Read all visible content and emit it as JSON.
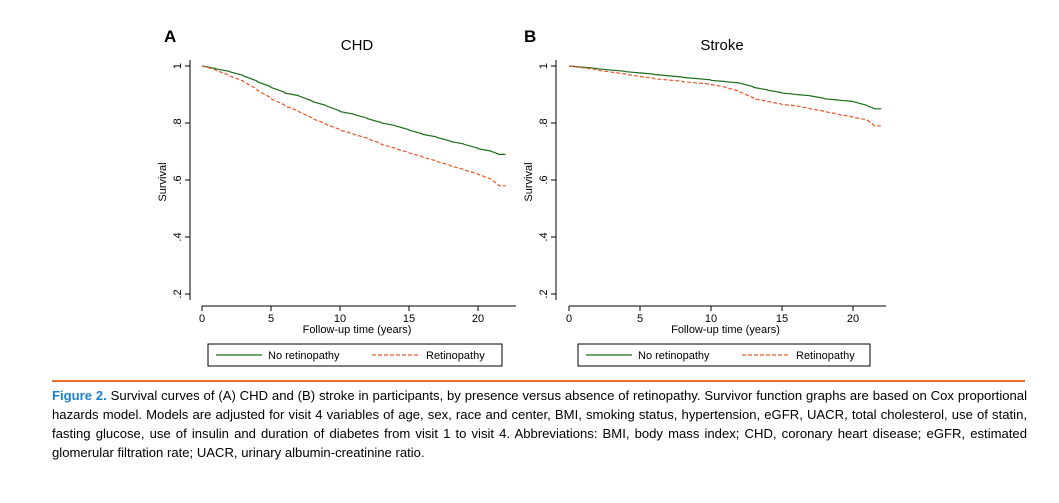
{
  "chart_data": [
    {
      "type": "line",
      "panel_label": "A",
      "title": "CHD",
      "xlabel": "Follow-up time (years)",
      "ylabel": "Survival",
      "xlim": [
        0,
        22
      ],
      "ylim": [
        0.2,
        1.0
      ],
      "x_ticks": [
        "0",
        "5",
        "10",
        "15",
        "20"
      ],
      "y_ticks": [
        ".2",
        ".4",
        ".6",
        ".8",
        "1"
      ],
      "series": [
        {
          "name": "No retinopathy",
          "color": "#1a6e1a",
          "style": "solid",
          "x": [
            0,
            1,
            2,
            3,
            4,
            5,
            6,
            7,
            8,
            9,
            10,
            11,
            12,
            13,
            14,
            15,
            16,
            17,
            18,
            19,
            20,
            21,
            21.5,
            22
          ],
          "y": [
            1.0,
            0.99,
            0.98,
            0.965,
            0.945,
            0.925,
            0.905,
            0.895,
            0.875,
            0.86,
            0.84,
            0.83,
            0.815,
            0.8,
            0.79,
            0.775,
            0.76,
            0.75,
            0.735,
            0.725,
            0.71,
            0.7,
            0.69,
            0.69
          ]
        },
        {
          "name": "Retinopathy",
          "color": "#e8572a",
          "style": "dashed",
          "x": [
            0,
            1,
            2,
            3,
            4,
            5,
            6,
            7,
            8,
            9,
            10,
            11,
            12,
            13,
            14,
            15,
            16,
            17,
            18,
            19,
            20,
            21,
            21.5,
            22
          ],
          "y": [
            1.0,
            0.985,
            0.965,
            0.945,
            0.915,
            0.885,
            0.86,
            0.84,
            0.815,
            0.795,
            0.775,
            0.76,
            0.745,
            0.725,
            0.71,
            0.695,
            0.68,
            0.665,
            0.65,
            0.635,
            0.62,
            0.6,
            0.58,
            0.58
          ]
        }
      ],
      "legend": [
        "No retinopathy",
        "Retinopathy"
      ]
    },
    {
      "type": "line",
      "panel_label": "B",
      "title": "Stroke",
      "xlabel": "Follow-up time (years)",
      "ylabel": "Survival",
      "xlim": [
        0,
        22
      ],
      "ylim": [
        0.2,
        1.0
      ],
      "x_ticks": [
        "0",
        "5",
        "10",
        "15",
        "20"
      ],
      "y_ticks": [
        ".2",
        ".4",
        ".6",
        ".8",
        "1"
      ],
      "series": [
        {
          "name": "No retinopathy",
          "color": "#1a6e1a",
          "style": "solid",
          "x": [
            0,
            2,
            4,
            6,
            8,
            10,
            11,
            12,
            13,
            14,
            15,
            16,
            17,
            18,
            19,
            20,
            21,
            21.5,
            22
          ],
          "y": [
            1.0,
            0.99,
            0.98,
            0.97,
            0.96,
            0.95,
            0.945,
            0.94,
            0.925,
            0.915,
            0.905,
            0.9,
            0.895,
            0.885,
            0.88,
            0.875,
            0.86,
            0.85,
            0.85
          ]
        },
        {
          "name": "Retinopathy",
          "color": "#e8572a",
          "style": "dashed",
          "x": [
            0,
            2,
            4,
            6,
            8,
            10,
            11,
            12,
            13,
            14,
            15,
            16,
            17,
            18,
            19,
            20,
            21,
            21.5,
            22
          ],
          "y": [
            1.0,
            0.985,
            0.97,
            0.955,
            0.945,
            0.935,
            0.925,
            0.91,
            0.885,
            0.875,
            0.865,
            0.86,
            0.85,
            0.84,
            0.83,
            0.82,
            0.81,
            0.79,
            0.79
          ]
        }
      ],
      "legend": [
        "No retinopathy",
        "Retinopathy"
      ]
    }
  ],
  "caption": {
    "label": "Figure 2.",
    "text": " Survival curves of (A) CHD and (B) stroke in participants, by presence versus absence of retinopathy. Survivor function graphs are based on Cox proportional hazards model. Models are adjusted for visit 4 variables of age, sex, race and center, BMI, smoking status, hypertension, eGFR, UACR, total cholesterol, use of statin, fasting glucose, use of insulin and duration of diabetes from visit 1 to visit 4. Abbreviations: BMI, body mass index; CHD, coronary heart disease; eGFR, estimated glomerular filtration rate; UACR, urinary albumin-creatinine ratio."
  }
}
